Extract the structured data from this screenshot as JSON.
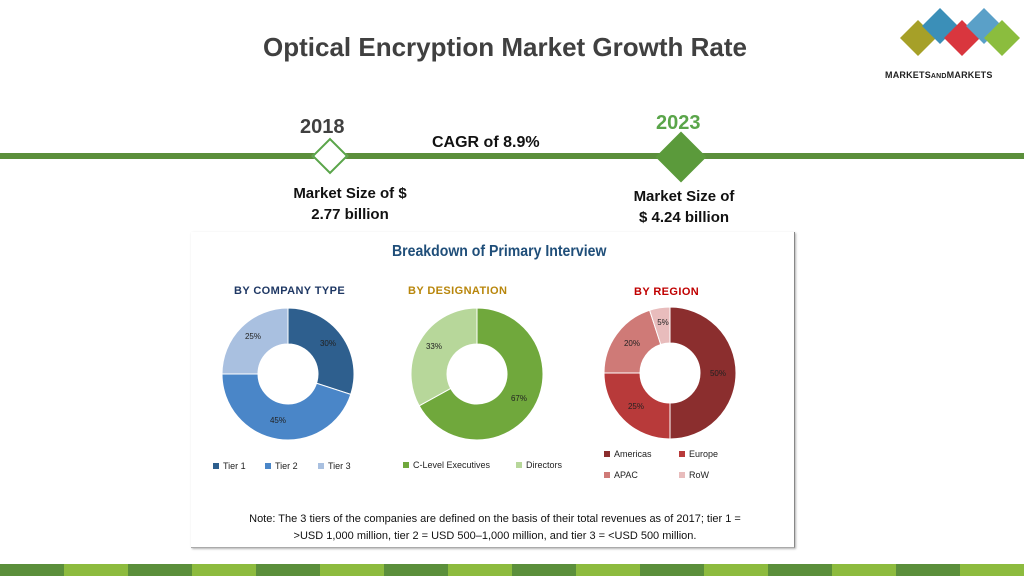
{
  "title": "Optical Encryption Market Growth Rate",
  "logo": {
    "text_main": "MARKETS",
    "text_and": "AND",
    "text_end": "MARKETS"
  },
  "timeline": {
    "start_year": "2018",
    "end_year": "2023",
    "cagr": "CAGR of 8.9%",
    "start_size_line1": "Market Size of $",
    "start_size_line2": "2.77 billion",
    "end_size_line1": "Market Size of",
    "end_size_line2": "$ 4.24 billion"
  },
  "panel": {
    "title": "Breakdown of Primary Interview",
    "note_line1": "Note: The 3 tiers of the companies are defined on the basis of their total revenues as of 2017; tier 1 =",
    "note_line2": ">USD 1,000 million, tier 2 = USD 500–1,000 million, and tier 3 = <USD 500 million."
  },
  "colors": {
    "accent_green": "#5b8f3b",
    "tier1": "#2e5f8e",
    "tier2": "#4a86c8",
    "tier3": "#a9c0e0",
    "c_level": "#70a83c",
    "directors": "#b7d79a",
    "americas": "#8b2e2e",
    "europe": "#b83a3a",
    "apac": "#cf7a77",
    "row": "#e8bcbc"
  },
  "chart_data": [
    {
      "type": "pie",
      "title": "BY COMPANY TYPE",
      "categories": [
        "Tier 1",
        "Tier 2",
        "Tier 3"
      ],
      "values": [
        30,
        45,
        25
      ],
      "labels": [
        "30%",
        "45%",
        "25%"
      ]
    },
    {
      "type": "pie",
      "title": "BY DESIGNATION",
      "categories": [
        "C-Level Executives",
        "Directors"
      ],
      "values": [
        67,
        33
      ],
      "labels": [
        "67%",
        "33%"
      ]
    },
    {
      "type": "pie",
      "title": "BY REGION",
      "categories": [
        "Americas",
        "Europe",
        "APAC",
        "RoW"
      ],
      "values": [
        50,
        25,
        20,
        5
      ],
      "labels": [
        "50%",
        "25%",
        "20%",
        "5%"
      ]
    }
  ]
}
